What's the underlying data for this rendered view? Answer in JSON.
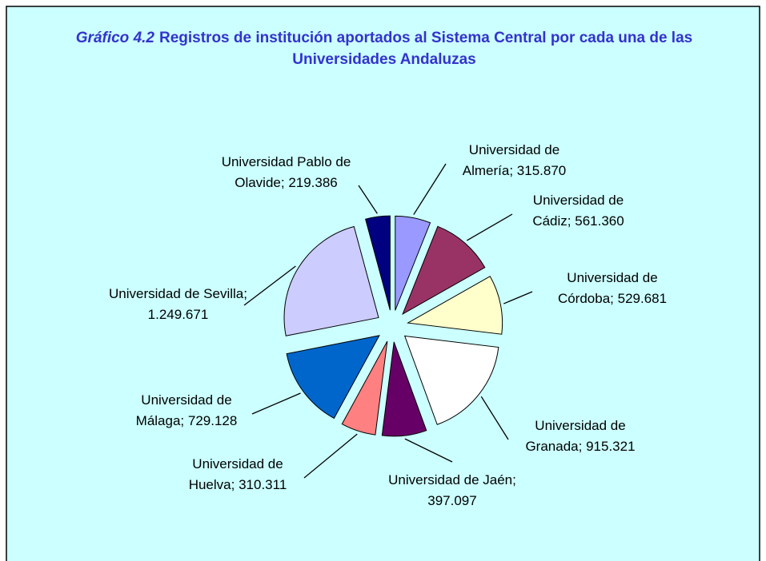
{
  "chart_data": {
    "type": "pie",
    "title_number": "Gráfico 4.2",
    "title": "Registros de institución aportados al Sistema Central por cada una de las Universidades Andaluzas",
    "label_separator": "; ",
    "categories": [
      "Universidad de Almería",
      "Universidad de Cádiz",
      "Universidad de Córdoba",
      "Universidad de Granada",
      "Universidad de Jaén",
      "Universidad de Huelva",
      "Universidad de Málaga",
      "Universidad de Sevilla",
      "Universidad Pablo de Olavide"
    ],
    "values": [
      315870,
      561360,
      529681,
      915321,
      397097,
      310311,
      729128,
      1249671,
      219386
    ],
    "value_labels": [
      "315.870",
      "561.360",
      "529.681",
      "915.321",
      "397.097",
      "310.311",
      "729.128",
      "1.249.671",
      "219.386"
    ],
    "colors": [
      "#9999ff",
      "#993366",
      "#ffffcc",
      "#ffffff",
      "#660066",
      "#ff8080",
      "#0066cc",
      "#ccccff",
      "#000080"
    ]
  }
}
